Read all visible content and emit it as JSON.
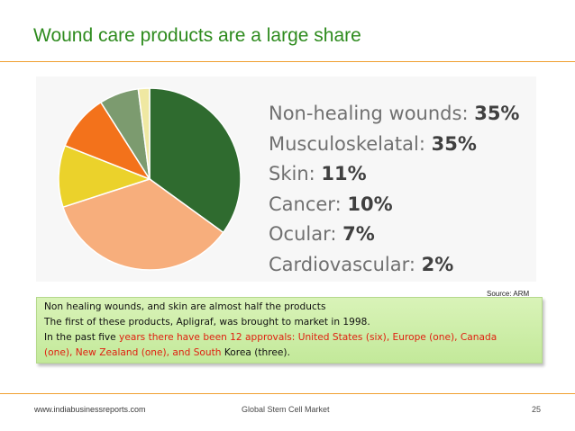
{
  "slide": {
    "title": "Wound care products are a large share",
    "source": "Source: ARM"
  },
  "chart_data": {
    "type": "pie",
    "title": "",
    "slices": [
      {
        "label": "Non-healing wounds:",
        "value_text": "35%",
        "value": 35,
        "color": "#2f6b2f"
      },
      {
        "label": "Musculoskelatal:",
        "value_text": "35%",
        "value": 35,
        "color": "#f7ae7c"
      },
      {
        "label": "Skin:",
        "value_text": "11%",
        "value": 11,
        "color": "#ebd22b"
      },
      {
        "label": "Cancer:",
        "value_text": "10%",
        "value": 10,
        "color": "#f3721b"
      },
      {
        "label": "Ocular:",
        "value_text": "7%",
        "value": 7,
        "color": "#7c9b6f"
      },
      {
        "label": "Cardiovascular:",
        "value_text": "2%",
        "value": 2,
        "color": "#efe8a2"
      }
    ]
  },
  "note": {
    "line1": "Non healing wounds, and skin are almost half the products",
    "line2": "The first of these products, Apligraf, was brought to market in 1998.",
    "line3_a": "In the past five ",
    "line3_b": "years there have been 12 approvals: United States (six), Europe (one), Canada",
    "line4_a": "(one), New Zealand (one), and South ",
    "line4_b": "Korea (three)."
  },
  "footer": {
    "site": "www.indiabusinessreports.com",
    "center": "Global Stem Cell Market",
    "page": "25"
  }
}
